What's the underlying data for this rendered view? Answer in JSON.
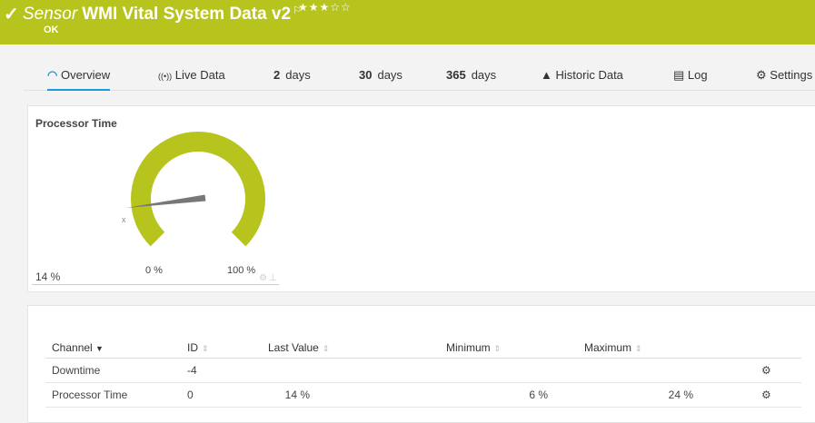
{
  "header": {
    "prefix": "Sensor",
    "title": "WMI Vital System Data v2",
    "flag_icon": "flag-icon",
    "stars": "★★★☆☆",
    "priority": 3,
    "status": "OK",
    "color": "#b8c41e"
  },
  "tabs": [
    {
      "icon": "◠",
      "label": "Overview"
    },
    {
      "icon": "((•))",
      "label": "Live Data"
    },
    {
      "num": "2",
      "label": "days"
    },
    {
      "num": "30",
      "label": "days"
    },
    {
      "num": "365",
      "label": "days"
    },
    {
      "icon": "▲",
      "label": "Historic Data"
    },
    {
      "icon": "▤",
      "label": "Log"
    },
    {
      "icon": "⚙",
      "label": "Settings"
    }
  ],
  "gauge": {
    "title": "Processor Time",
    "value": 14,
    "value_label": "14 %",
    "min_label": "0 %",
    "max_label": "100 %",
    "marker": "x"
  },
  "table": {
    "headers": [
      "Channel",
      "ID",
      "Last Value",
      "Minimum",
      "Maximum"
    ],
    "rows": [
      {
        "channel": "Downtime",
        "id": "-4",
        "last": "",
        "min": "",
        "max": ""
      },
      {
        "channel": "Processor Time",
        "id": "0",
        "last": "14 %",
        "min": "6 %",
        "max": "24 %"
      }
    ]
  }
}
